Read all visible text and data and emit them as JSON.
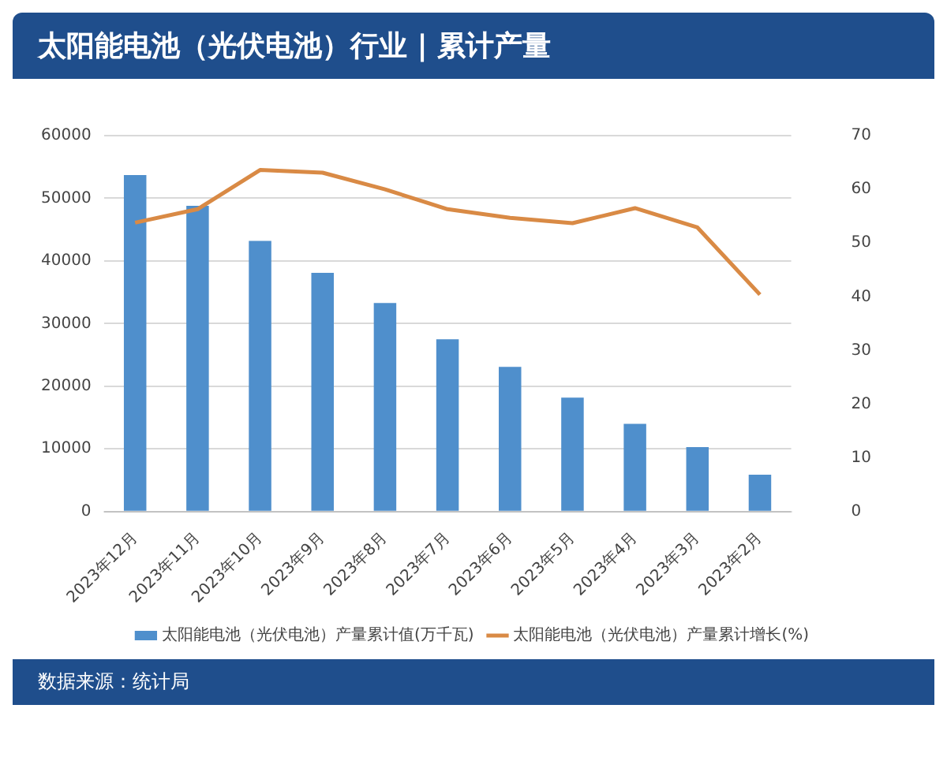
{
  "chart_data": {
    "type": "bar",
    "title": "太阳能电池（光伏电池）行业 | 累计产量",
    "categories": [
      "2023年12月",
      "2023年11月",
      "2023年10月",
      "2023年9月",
      "2023年8月",
      "2023年7月",
      "2023年6月",
      "2023年5月",
      "2023年4月",
      "2023年3月",
      "2023年2月"
    ],
    "series": [
      {
        "name": "太阳能电池（光伏电池）产量累计值(万千瓦)",
        "color": "#4f8fcc",
        "values": [
          53700,
          48800,
          43200,
          38100,
          33300,
          27500,
          23100,
          18200,
          14000,
          10300,
          5900
        ]
      },
      {
        "name": "太阳能电池（光伏电池）产量累计增长(%)",
        "type": "line",
        "axis": "y2",
        "color": "#d98a45",
        "values": [
          53.8,
          56.3,
          63.6,
          63.1,
          60.0,
          56.3,
          54.7,
          53.7,
          56.5,
          52.9,
          40.4
        ]
      }
    ],
    "ylim": [
      0,
      60000
    ],
    "yticks": [
      0,
      10000,
      20000,
      30000,
      40000,
      50000,
      60000
    ],
    "y2lim": [
      0,
      70
    ],
    "y2ticks": [
      0,
      10,
      20,
      30,
      40,
      50,
      60,
      70
    ],
    "grid": "y",
    "legend": "bottom",
    "marker": "none",
    "line_style": "solid",
    "annotations": [
      "数据来源：统计局"
    ]
  }
}
